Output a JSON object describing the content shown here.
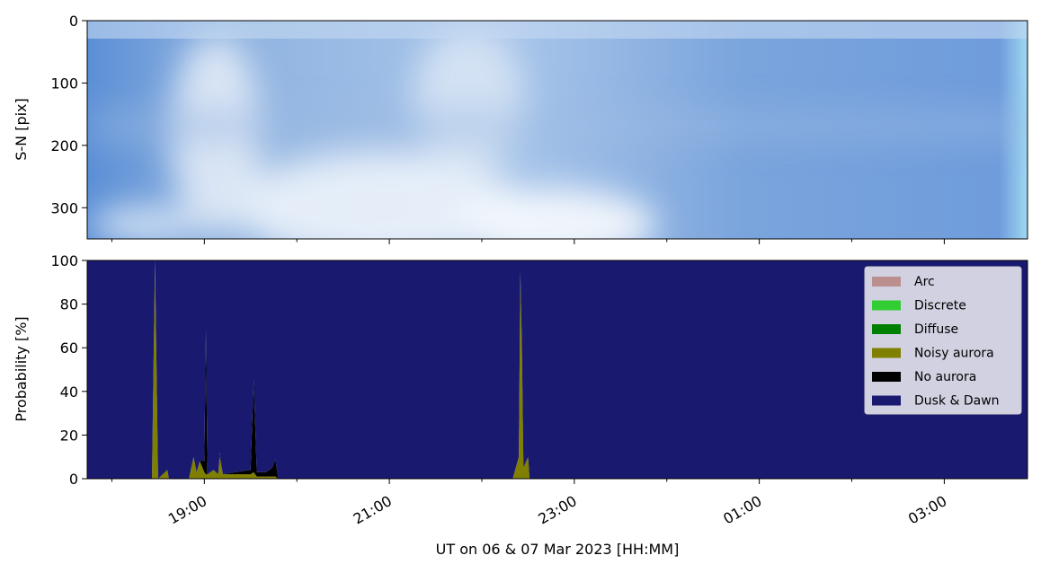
{
  "chart_data": [
    {
      "type": "image",
      "ylabel": "S-N [pix]",
      "ylim": [
        350,
        0
      ],
      "yticks": [
        0,
        100,
        200,
        300
      ],
      "xlim": [
        "17:44",
        "03:54"
      ],
      "xticks": [
        "19:00",
        "21:00",
        "23:00",
        "01:00",
        "03:00"
      ],
      "xticks_minor": [
        "18:00",
        "20:00",
        "22:00",
        "00:00",
        "02:00"
      ]
    },
    {
      "type": "stacked_area",
      "ylabel": "Probability [%]",
      "xlabel": "UT on 06 & 07 Mar 2023 [HH:MM]",
      "ylim": [
        0,
        100
      ],
      "yticks": [
        0,
        20,
        40,
        60,
        80,
        100
      ],
      "xlim": [
        "17:44",
        "03:54"
      ],
      "xticks": [
        "19:00",
        "21:00",
        "23:00",
        "01:00",
        "03:00"
      ],
      "xticks_minor": [
        "18:00",
        "20:00",
        "22:00",
        "00:00",
        "02:00"
      ],
      "legend": "upper right",
      "x": [
        "17:44",
        "18:20",
        "18:26",
        "18:28",
        "18:30",
        "18:36",
        "18:37",
        "18:50",
        "18:53",
        "18:55",
        "18:57",
        "19:00",
        "19:01",
        "19:02",
        "19:06",
        "19:09",
        "19:10",
        "19:12",
        "19:20",
        "19:30",
        "19:32",
        "19:34",
        "19:40",
        "19:44",
        "19:46",
        "19:48",
        "20:00",
        "22:20",
        "22:24",
        "22:25",
        "22:26",
        "22:27",
        "22:30",
        "22:31",
        "03:54"
      ],
      "series": [
        {
          "name": "Arc",
          "color": "#bc8f8f",
          "values": [
            0,
            0,
            0,
            0,
            0,
            0,
            0,
            0,
            0,
            0,
            0,
            0,
            0,
            0,
            0,
            0,
            0,
            0,
            0,
            0,
            0,
            0,
            0,
            0,
            0,
            0,
            0,
            0,
            0,
            0,
            0,
            0,
            0,
            0,
            0
          ]
        },
        {
          "name": "Discrete",
          "color": "#32cd32",
          "values": [
            0,
            0,
            0,
            0,
            0,
            0,
            0,
            0,
            0,
            0,
            0,
            0,
            0,
            0,
            0,
            0,
            0,
            0,
            0,
            0,
            0,
            0,
            0,
            0,
            0,
            0,
            0,
            0,
            0,
            0,
            0,
            0,
            0,
            0,
            0
          ]
        },
        {
          "name": "Diffuse",
          "color": "#008000",
          "values": [
            0,
            0,
            0,
            0,
            0,
            0,
            0,
            0,
            0,
            0,
            0,
            0,
            0,
            0,
            0,
            0,
            0,
            0,
            0,
            0,
            0,
            0,
            0,
            0,
            0,
            0,
            0,
            0,
            0,
            0,
            0,
            0,
            0,
            0,
            0
          ]
        },
        {
          "name": "Noisy aurora",
          "color": "#808000",
          "values": [
            0,
            0,
            0,
            100,
            0,
            4,
            0,
            0,
            10,
            3,
            8,
            3,
            2,
            2,
            4,
            2,
            10,
            2,
            2,
            2,
            3,
            1,
            1,
            1,
            1,
            0,
            0,
            0,
            10,
            95,
            60,
            5,
            10,
            0,
            0
          ]
        },
        {
          "name": "No aurora",
          "color": "#000000",
          "values": [
            0,
            0,
            0,
            0,
            0,
            0,
            0,
            0,
            0,
            0,
            0,
            5,
            66,
            0,
            0,
            0,
            2,
            0,
            1,
            2,
            42,
            2,
            2,
            4,
            8,
            0,
            0,
            0,
            0,
            0,
            0,
            0,
            0,
            0,
            0
          ]
        },
        {
          "name": "Dusk & Dawn",
          "color": "#191970",
          "values": [
            100,
            100,
            100,
            0,
            100,
            96,
            100,
            100,
            90,
            97,
            92,
            92,
            32,
            98,
            96,
            98,
            88,
            98,
            97,
            96,
            55,
            97,
            97,
            95,
            91,
            100,
            100,
            100,
            90,
            5,
            40,
            95,
            90,
            100,
            100
          ]
        }
      ]
    }
  ]
}
